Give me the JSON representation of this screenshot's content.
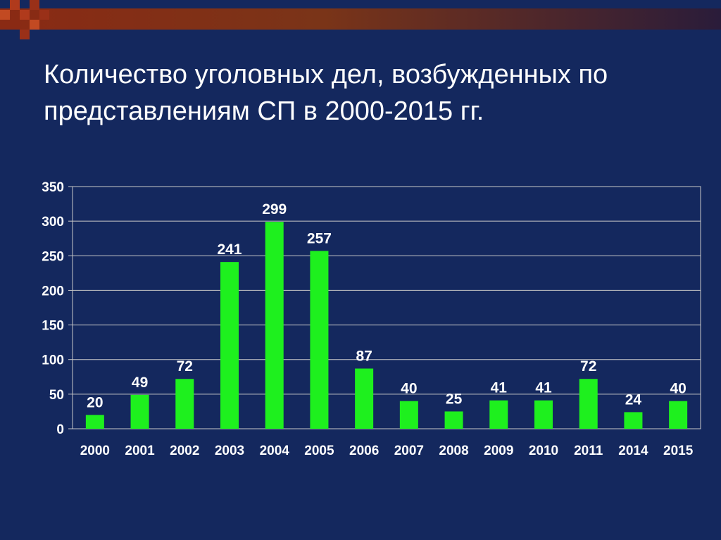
{
  "slide": {
    "title_line1": "Количество уголовных дел, возбужденных по",
    "title_line2": "представлениям СП в 2000-2015 гг."
  },
  "colors": {
    "background": "#14285e",
    "bar": "#1ef01e",
    "grid": "#c8c8c8",
    "text": "#ffffff"
  },
  "chart_data": {
    "type": "bar",
    "categories": [
      "2000",
      "2001",
      "2002",
      "2003",
      "2004",
      "2005",
      "2006",
      "2007",
      "2008",
      "2009",
      "2010",
      "2011",
      "2014",
      "2015"
    ],
    "values": [
      20,
      49,
      72,
      241,
      299,
      257,
      87,
      40,
      25,
      41,
      41,
      72,
      24,
      40
    ],
    "ylim": [
      0,
      350
    ],
    "yticks": [
      0,
      50,
      100,
      150,
      200,
      250,
      300,
      350
    ],
    "grid": true,
    "data_labels": true,
    "legend": "none"
  }
}
